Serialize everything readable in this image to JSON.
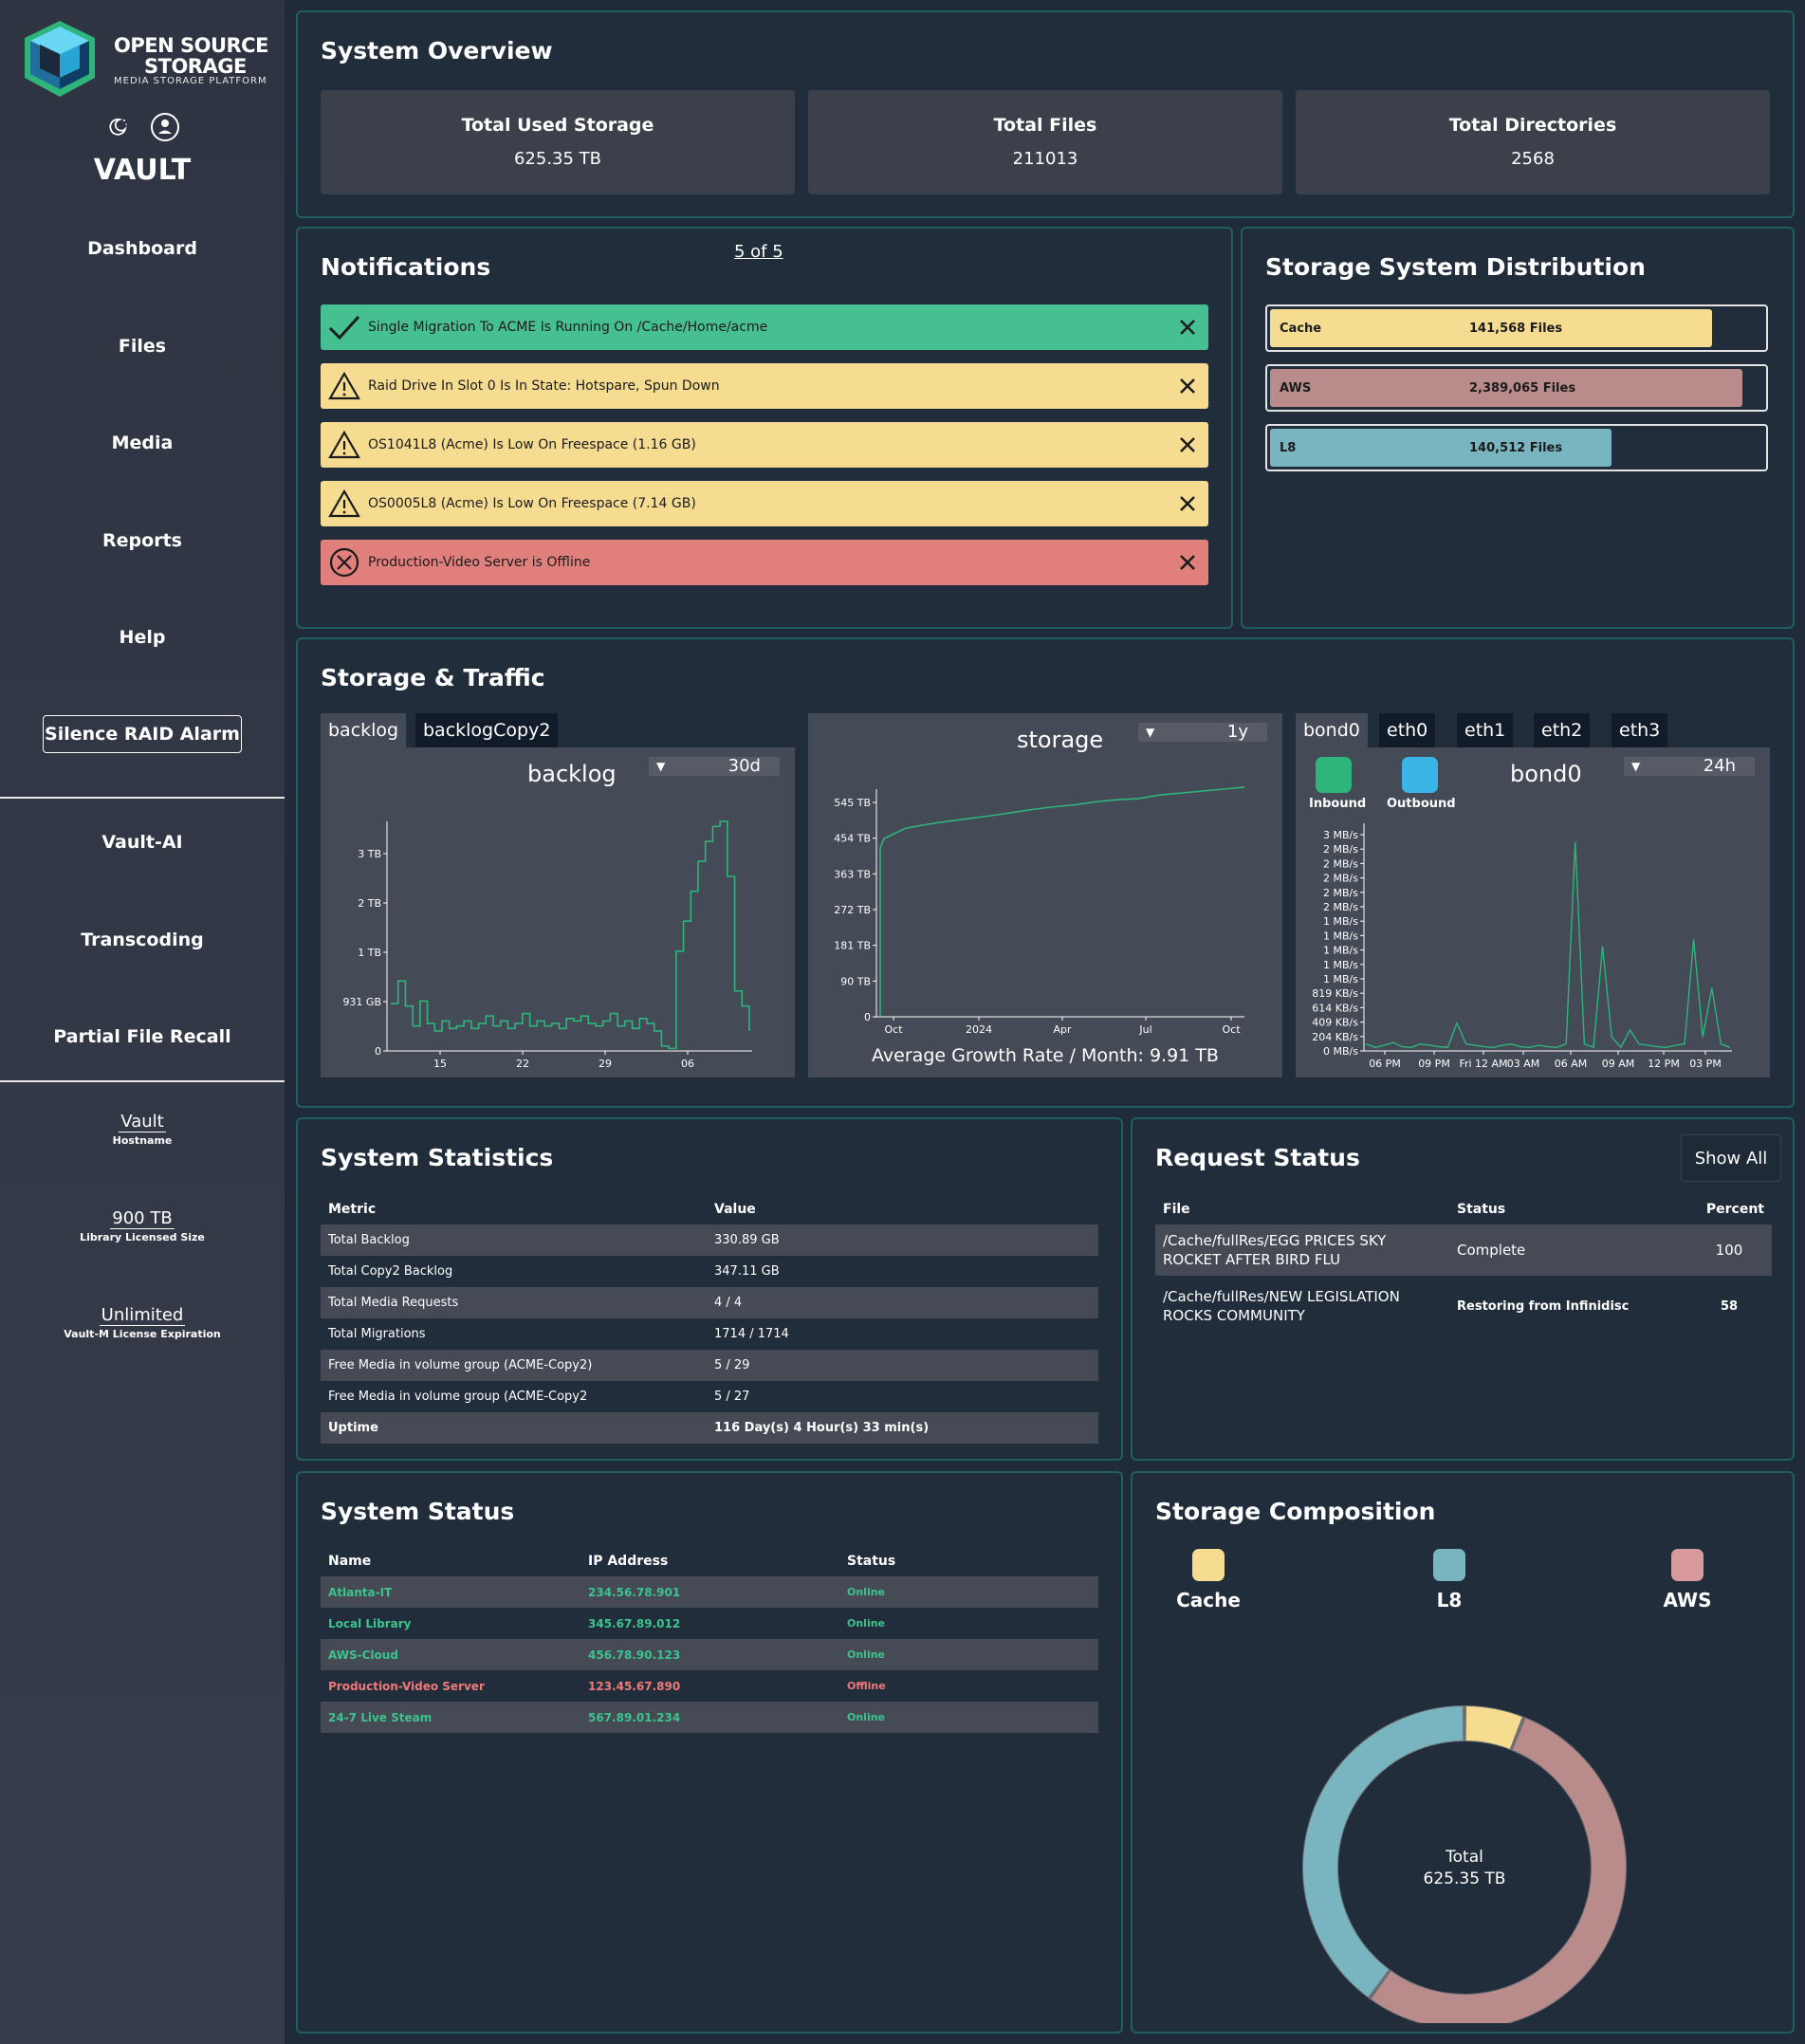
{
  "brand": {
    "line1": "OPEN SOURCE",
    "line2": "STORAGE",
    "tagline": "MEDIA STORAGE PLATFORM",
    "app_title": "VAULT"
  },
  "sidebar": {
    "nav": [
      "Dashboard",
      "Files",
      "Media",
      "Reports",
      "Help"
    ],
    "raid_button": "Silence RAID Alarm",
    "nav2": [
      "Vault-AI",
      "Transcoding",
      "Partial File Recall"
    ],
    "info": [
      {
        "value": "Vault",
        "label": "Hostname"
      },
      {
        "value": "900 TB",
        "label": "Library Licensed Size"
      },
      {
        "value": "Unlimited",
        "label": "Vault-M License Expiration"
      }
    ]
  },
  "overview": {
    "title": "System Overview",
    "cards": [
      {
        "label": "Total Used Storage",
        "value": "625.35 TB"
      },
      {
        "label": "Total Files",
        "value": "211013"
      },
      {
        "label": "Total Directories",
        "value": "2568"
      }
    ]
  },
  "notifications": {
    "title": "Notifications",
    "pager": "5 of 5",
    "items": [
      {
        "type": "success",
        "text": "Single Migration To ACME Is Running On /Cache/Home/acme",
        "color": "#46bf92"
      },
      {
        "type": "warning",
        "text": "Raid Drive In Slot 0 Is In State: Hotspare, Spun Down",
        "color": "#f5dc91"
      },
      {
        "type": "warning",
        "text": "OS1041L8 (Acme)  Is Low On Freespace (1.16 GB)",
        "color": "#f5dc91"
      },
      {
        "type": "warning",
        "text": "OS0005L8 (Acme) Is Low On Freespace (7.14 GB)",
        "color": "#f5dc91"
      },
      {
        "type": "error",
        "text": "Production-Video Server is Offline",
        "color": "#e07f7c"
      }
    ]
  },
  "distribution": {
    "title": "Storage System Distribution",
    "rows": [
      {
        "name": "Cache",
        "count": "141,568 Files",
        "color": "#f5dc91",
        "fill": 0.64
      },
      {
        "name": "AWS",
        "count": "2,389,065 Files",
        "color": "#b98b8b",
        "fill": 0.685
      },
      {
        "name": "L8",
        "count": "140,512 Files",
        "color": "#78b5c0",
        "fill": 0.495
      }
    ]
  },
  "traffic": {
    "title": "Storage & Traffic",
    "backlog_tabs": [
      "backlog",
      "backlogCopy2"
    ],
    "backlog_chart_title": "backlog",
    "backlog_range": "30d",
    "storage_chart_title": "storage",
    "storage_range": "1y",
    "growth_text": "Average Growth Rate / Month: 9.91 TB",
    "net_tabs": [
      "bond0",
      "eth0",
      "eth1",
      "eth2",
      "eth3"
    ],
    "net_chart_title": "bond0",
    "net_range": "24h",
    "net_legend": [
      {
        "name": "Inbound",
        "color": "#2fb47c"
      },
      {
        "name": "Outbound",
        "color": "#3ab5e6"
      }
    ],
    "line_color": "#2fb47c"
  },
  "chart_data": [
    {
      "type": "line",
      "title": "backlog",
      "x_ticks": [
        "15",
        "22",
        "29",
        "06"
      ],
      "y_ticks": [
        "0",
        "931 GB",
        "1 TB",
        "2 TB",
        "3 TB"
      ],
      "ylim_tb": [
        0,
        4.6
      ],
      "series": [
        {
          "values_tb": [
            0.95,
            1.4,
            0.9,
            0.5,
            1.0,
            0.55,
            0.4,
            0.6,
            0.45,
            0.5,
            0.6,
            0.45,
            0.55,
            0.7,
            0.5,
            0.6,
            0.45,
            0.55,
            0.75,
            0.5,
            0.6,
            0.5,
            0.55,
            0.45,
            0.65,
            0.6,
            0.7,
            0.55,
            0.5,
            0.6,
            0.75,
            0.5,
            0.6,
            0.45,
            0.65,
            0.55,
            0.4,
            0.1,
            0.05,
            2.0,
            2.6,
            3.2,
            3.8,
            4.2,
            4.5,
            4.6,
            3.5,
            1.2,
            0.9,
            0.4
          ]
        }
      ]
    },
    {
      "type": "line",
      "title": "storage",
      "x_ticks": [
        "Oct",
        "2024",
        "Apr",
        "Jul",
        "Oct"
      ],
      "y_ticks": [
        "0",
        "90 TB",
        "181 TB",
        "272 TB",
        "363 TB",
        "454 TB",
        "545 TB"
      ],
      "ylim_tb": [
        0,
        580
      ],
      "series": [
        {
          "values_tb": [
            454,
            480,
            490,
            498,
            505,
            512,
            520,
            528,
            535,
            540,
            548,
            553,
            556,
            565,
            570,
            575,
            580,
            585
          ]
        }
      ]
    },
    {
      "type": "line",
      "title": "bond0",
      "x_ticks": [
        "06 PM",
        "09 PM",
        "Fri 12 AM",
        "03 AM",
        "06 AM",
        "09 AM",
        "12 PM",
        "03 PM"
      ],
      "y_ticks": [
        "0 MB/s",
        "204 KB/s",
        "409 KB/s",
        "614 KB/s",
        "819 KB/s",
        "1 MB/s",
        "1 MB/s",
        "1 MB/s",
        "1 MB/s",
        "1 MB/s",
        "2 MB/s",
        "2 MB/s",
        "2 MB/s",
        "2 MB/s",
        "2 MB/s",
        "3 MB/s"
      ],
      "series": [
        {
          "name": "Inbound",
          "values_mbs": [
            0.1,
            0.05,
            0.08,
            0.12,
            0.06,
            0.05,
            0.1,
            0.08,
            0.06,
            0.05,
            0.4,
            0.1,
            0.08,
            0.06,
            0.05,
            0.08,
            0.1,
            0.06,
            0.05,
            0.08,
            0.06,
            0.05,
            0.1,
            3.0,
            0.1,
            0.05,
            1.5,
            0.2,
            0.05,
            0.3,
            0.1,
            0.08,
            0.06,
            0.05,
            0.08,
            0.1,
            1.6,
            0.2,
            0.9,
            0.1,
            0.05
          ]
        }
      ]
    },
    {
      "type": "pie",
      "title": "Storage Composition",
      "center_label": "Total",
      "center_value": "625.35 TB",
      "slices": [
        {
          "name": "Cache",
          "fraction": 0.06,
          "color": "#f5dc91"
        },
        {
          "name": "AWS",
          "fraction": 0.54,
          "color": "#b98b8b"
        },
        {
          "name": "L8",
          "fraction": 0.4,
          "color": "#78b5c0"
        }
      ]
    }
  ],
  "system_statistics": {
    "title": "System Statistics",
    "headers": [
      "Metric",
      "Value"
    ],
    "rows": [
      [
        "Total Backlog",
        "330.89 GB"
      ],
      [
        "Total Copy2 Backlog",
        "347.11 GB"
      ],
      [
        "Total Media Requests",
        "4 / 4"
      ],
      [
        "Total Migrations",
        "1714 / 1714"
      ],
      [
        "Free Media in volume group (ACME-Copy2)",
        "5 / 29"
      ],
      [
        "Free Media in volume group (ACME-Copy2",
        "5 / 27"
      ],
      [
        "Uptime",
        "116 Day(s) 4 Hour(s) 33 min(s)"
      ]
    ]
  },
  "request_status": {
    "title": "Request Status",
    "show_all": "Show All",
    "headers": [
      "File",
      "Status",
      "Percent"
    ],
    "rows": [
      [
        "/Cache/fullRes/EGG PRICES SKY ROCKET AFTER BIRD FLU",
        "Complete",
        "100"
      ],
      [
        "/Cache/fullRes/NEW LEGISLATION ROCKS COMMUNITY",
        "Restoring from Infinidisc",
        "58"
      ]
    ]
  },
  "system_status": {
    "title": "System Status",
    "headers": [
      "Name",
      "IP Address",
      "Status"
    ],
    "rows": [
      {
        "name": "Atlanta-IT",
        "ip": "234.56.78.901",
        "status": "Online",
        "color": "#3cc38e"
      },
      {
        "name": "Local Library",
        "ip": "345.67.89.012",
        "status": "Online",
        "color": "#3cc38e"
      },
      {
        "name": "AWS-Cloud",
        "ip": "456.78.90.123",
        "status": "Online",
        "color": "#3cc38e"
      },
      {
        "name": "Production-Video Server",
        "ip": "123.45.67.890",
        "status": "Offline",
        "color": "#ef7a79"
      },
      {
        "name": "24-7 Live Steam",
        "ip": "567.89.01.234",
        "status": "Online",
        "color": "#3cc38e"
      }
    ]
  },
  "storage_composition": {
    "title": "Storage Composition",
    "legend": [
      {
        "name": "Cache",
        "color": "#f5dc91"
      },
      {
        "name": "L8",
        "color": "#78b5c0"
      },
      {
        "name": "AWS",
        "color": "#d89a9a"
      }
    ]
  }
}
